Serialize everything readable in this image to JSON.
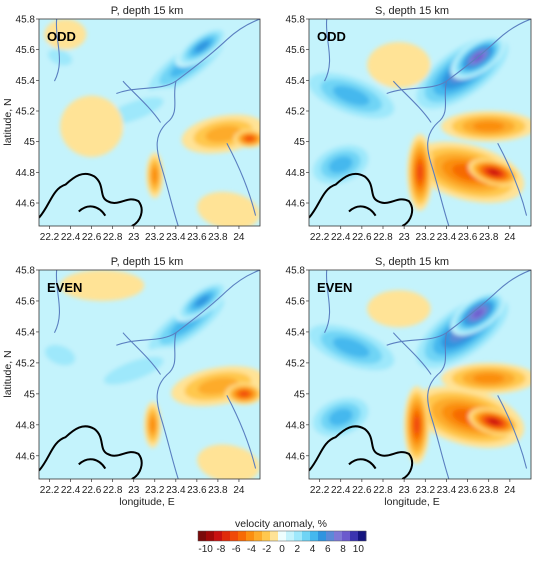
{
  "chart_data": [
    {
      "type": "heatmap",
      "id": "p_odd",
      "title": "P, depth 15 km",
      "tag": "ODD",
      "xlabel": "",
      "ylabel": "latitude, N",
      "xlim": [
        22.1,
        24.2
      ],
      "ylim": [
        44.45,
        45.8
      ],
      "xticks": [
        22.2,
        22.4,
        22.6,
        22.8,
        23,
        23.2,
        23.4,
        23.6,
        23.8,
        24
      ],
      "yticks": [
        44.6,
        44.8,
        45,
        45.2,
        45.4,
        45.6,
        45.8
      ],
      "blobs": [
        {
          "lon": 23.5,
          "lat": 45.5,
          "rx": 0.55,
          "ry": 0.12,
          "angle": 35,
          "value": 4
        },
        {
          "lon": 23.65,
          "lat": 45.62,
          "rx": 0.3,
          "ry": 0.08,
          "angle": 35,
          "value": 5
        },
        {
          "lon": 22.3,
          "lat": 45.55,
          "rx": 0.2,
          "ry": 0.08,
          "angle": -20,
          "value": 2
        },
        {
          "lon": 23.0,
          "lat": 45.2,
          "rx": 0.5,
          "ry": 0.1,
          "angle": 20,
          "value": 2
        },
        {
          "lon": 23.85,
          "lat": 45.05,
          "rx": 0.4,
          "ry": 0.12,
          "angle": 10,
          "value": -3
        },
        {
          "lon": 24.1,
          "lat": 45.02,
          "rx": 0.15,
          "ry": 0.06,
          "angle": 0,
          "value": -6
        },
        {
          "lon": 23.2,
          "lat": 44.78,
          "rx": 0.08,
          "ry": 0.15,
          "angle": 0,
          "value": -4
        },
        {
          "lon": 22.6,
          "lat": 45.1,
          "rx": 0.3,
          "ry": 0.2,
          "angle": 0,
          "value": -1
        },
        {
          "lon": 23.9,
          "lat": 44.55,
          "rx": 0.3,
          "ry": 0.12,
          "angle": -10,
          "value": -1
        },
        {
          "lon": 22.35,
          "lat": 45.7,
          "rx": 0.2,
          "ry": 0.1,
          "angle": 0,
          "value": -1
        }
      ]
    },
    {
      "type": "heatmap",
      "id": "s_odd",
      "title": "S, depth 15 km",
      "tag": "ODD",
      "xlabel": "",
      "ylabel": "",
      "xlim": [
        22.1,
        24.2
      ],
      "ylim": [
        44.45,
        45.8
      ],
      "xticks": [
        22.2,
        22.4,
        22.6,
        22.8,
        23,
        23.2,
        23.4,
        23.6,
        23.8,
        24
      ],
      "yticks": [
        44.6,
        44.8,
        45,
        45.2,
        45.4,
        45.6,
        45.8
      ],
      "blobs": [
        {
          "lon": 23.55,
          "lat": 45.45,
          "rx": 0.6,
          "ry": 0.18,
          "angle": 35,
          "value": 6
        },
        {
          "lon": 23.7,
          "lat": 45.55,
          "rx": 0.3,
          "ry": 0.1,
          "angle": 35,
          "value": 8
        },
        {
          "lon": 22.5,
          "lat": 45.3,
          "rx": 0.55,
          "ry": 0.15,
          "angle": -20,
          "value": 4
        },
        {
          "lon": 22.4,
          "lat": 44.85,
          "rx": 0.35,
          "ry": 0.15,
          "angle": 20,
          "value": 4
        },
        {
          "lon": 23.6,
          "lat": 44.8,
          "rx": 0.55,
          "ry": 0.18,
          "angle": -15,
          "value": -5
        },
        {
          "lon": 23.85,
          "lat": 44.8,
          "rx": 0.25,
          "ry": 0.08,
          "angle": -15,
          "value": -8
        },
        {
          "lon": 23.15,
          "lat": 44.8,
          "rx": 0.12,
          "ry": 0.25,
          "angle": 0,
          "value": -6
        },
        {
          "lon": 23.8,
          "lat": 45.1,
          "rx": 0.45,
          "ry": 0.1,
          "angle": 0,
          "value": -4
        },
        {
          "lon": 22.95,
          "lat": 45.5,
          "rx": 0.3,
          "ry": 0.15,
          "angle": 0,
          "value": -1
        }
      ]
    },
    {
      "type": "heatmap",
      "id": "p_even",
      "title": "P, depth 15 km",
      "tag": "EVEN",
      "xlabel": "longitude, E",
      "ylabel": "latitude, N",
      "xlim": [
        22.1,
        24.2
      ],
      "ylim": [
        44.45,
        45.8
      ],
      "xticks": [
        22.2,
        22.4,
        22.6,
        22.8,
        23,
        23.2,
        23.4,
        23.6,
        23.8,
        24
      ],
      "yticks": [
        44.6,
        44.8,
        45,
        45.2,
        45.4,
        45.6,
        45.8
      ],
      "blobs": [
        {
          "lon": 23.5,
          "lat": 45.45,
          "rx": 0.55,
          "ry": 0.12,
          "angle": 35,
          "value": 4
        },
        {
          "lon": 23.65,
          "lat": 45.6,
          "rx": 0.3,
          "ry": 0.08,
          "angle": 35,
          "value": 5
        },
        {
          "lon": 22.3,
          "lat": 45.25,
          "rx": 0.25,
          "ry": 0.1,
          "angle": -20,
          "value": 2
        },
        {
          "lon": 23.0,
          "lat": 45.15,
          "rx": 0.5,
          "ry": 0.1,
          "angle": 20,
          "value": 2
        },
        {
          "lon": 23.8,
          "lat": 45.05,
          "rx": 0.45,
          "ry": 0.12,
          "angle": 10,
          "value": -3
        },
        {
          "lon": 24.05,
          "lat": 45.0,
          "rx": 0.18,
          "ry": 0.07,
          "angle": 0,
          "value": -6
        },
        {
          "lon": 23.18,
          "lat": 44.8,
          "rx": 0.08,
          "ry": 0.15,
          "angle": 0,
          "value": -4
        },
        {
          "lon": 22.7,
          "lat": 45.7,
          "rx": 0.4,
          "ry": 0.1,
          "angle": 0,
          "value": -1
        },
        {
          "lon": 23.9,
          "lat": 44.55,
          "rx": 0.3,
          "ry": 0.12,
          "angle": -10,
          "value": -1
        }
      ]
    },
    {
      "type": "heatmap",
      "id": "s_even",
      "title": "S, depth 15 km",
      "tag": "EVEN",
      "xlabel": "longitude, E",
      "ylabel": "",
      "xlim": [
        22.1,
        24.2
      ],
      "ylim": [
        44.45,
        45.8
      ],
      "xticks": [
        22.2,
        22.4,
        22.6,
        22.8,
        23,
        23.2,
        23.4,
        23.6,
        23.8,
        24
      ],
      "yticks": [
        44.6,
        44.8,
        45,
        45.2,
        45.4,
        45.6,
        45.8
      ],
      "blobs": [
        {
          "lon": 23.55,
          "lat": 45.4,
          "rx": 0.6,
          "ry": 0.18,
          "angle": 35,
          "value": 6
        },
        {
          "lon": 23.7,
          "lat": 45.52,
          "rx": 0.3,
          "ry": 0.1,
          "angle": 35,
          "value": 8
        },
        {
          "lon": 22.5,
          "lat": 45.3,
          "rx": 0.55,
          "ry": 0.15,
          "angle": -20,
          "value": 4
        },
        {
          "lon": 22.4,
          "lat": 44.85,
          "rx": 0.35,
          "ry": 0.15,
          "angle": 20,
          "value": 4
        },
        {
          "lon": 23.6,
          "lat": 44.85,
          "rx": 0.55,
          "ry": 0.18,
          "angle": -15,
          "value": -5
        },
        {
          "lon": 23.85,
          "lat": 44.82,
          "rx": 0.25,
          "ry": 0.08,
          "angle": -15,
          "value": -8
        },
        {
          "lon": 23.12,
          "lat": 44.8,
          "rx": 0.12,
          "ry": 0.25,
          "angle": 0,
          "value": -6
        },
        {
          "lon": 23.8,
          "lat": 45.1,
          "rx": 0.45,
          "ry": 0.1,
          "angle": 0,
          "value": -4
        },
        {
          "lon": 22.95,
          "lat": 45.55,
          "rx": 0.3,
          "ry": 0.12,
          "angle": 0,
          "value": -1
        }
      ]
    }
  ],
  "colorbar": {
    "label": "velocity anomaly, %",
    "ticks": [
      "-10",
      "-8",
      "-6",
      "-4",
      "-2",
      "0",
      "2",
      "4",
      "6",
      "8",
      "10"
    ],
    "levels": [
      -10,
      -9,
      -8,
      -7,
      -6,
      -5,
      -4,
      -3,
      -2,
      -1,
      0,
      1,
      2,
      3,
      4,
      5,
      6,
      7,
      8,
      9,
      10
    ],
    "colors": [
      "#7a0a0a",
      "#a00808",
      "#c81010",
      "#e02a0a",
      "#f04a08",
      "#f76a05",
      "#fb8e10",
      "#fdab2a",
      "#ffc84e",
      "#ffe396",
      "#eefefe",
      "#c4f3fc",
      "#9ee8fb",
      "#6fd4f5",
      "#45b8ee",
      "#2f94df",
      "#5b8ad8",
      "#7f78d6",
      "#6b5acd",
      "#3b34b0",
      "#14147f"
    ]
  }
}
